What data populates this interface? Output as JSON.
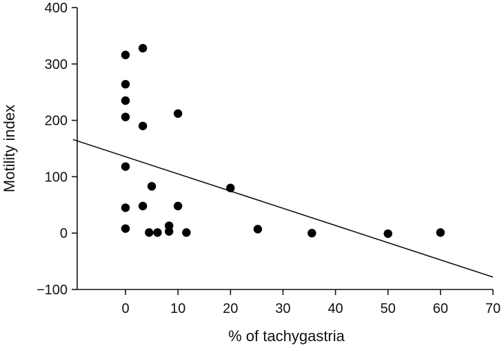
{
  "chart_data": {
    "type": "scatter",
    "title": "",
    "xlabel": "% of tachygastria",
    "ylabel": "Motility index",
    "xlim": [
      -10,
      70
    ],
    "ylim": [
      -100,
      400
    ],
    "xticks": [
      0,
      10,
      20,
      30,
      40,
      50,
      60,
      70
    ],
    "yticks": [
      400,
      300,
      200,
      100,
      0,
      -100
    ],
    "xtick_labels": [
      "0",
      "10",
      "20",
      "30",
      "40",
      "50",
      "60",
      "70"
    ],
    "ytick_labels": [
      "400",
      "300",
      "200",
      "100",
      "0",
      "−100"
    ],
    "grid": false,
    "points": [
      {
        "x": 0,
        "y": 316
      },
      {
        "x": 0,
        "y": 264
      },
      {
        "x": 0,
        "y": 235
      },
      {
        "x": 0,
        "y": 206
      },
      {
        "x": 0,
        "y": 118
      },
      {
        "x": 0,
        "y": 45
      },
      {
        "x": 0,
        "y": 8
      },
      {
        "x": 3.3,
        "y": 328
      },
      {
        "x": 3.3,
        "y": 190
      },
      {
        "x": 3.3,
        "y": 48
      },
      {
        "x": 4.5,
        "y": 1
      },
      {
        "x": 5,
        "y": 83
      },
      {
        "x": 6.1,
        "y": 1
      },
      {
        "x": 8.3,
        "y": 13
      },
      {
        "x": 8.3,
        "y": 3
      },
      {
        "x": 10,
        "y": 212
      },
      {
        "x": 10,
        "y": 48
      },
      {
        "x": 11.6,
        "y": 1
      },
      {
        "x": 20,
        "y": 80
      },
      {
        "x": 25.2,
        "y": 7
      },
      {
        "x": 35.5,
        "y": 0
      },
      {
        "x": 50,
        "y": -1
      },
      {
        "x": 60,
        "y": 1
      }
    ],
    "regression_line": {
      "x": [
        -10,
        70
      ],
      "y": [
        166,
        -78
      ]
    }
  }
}
